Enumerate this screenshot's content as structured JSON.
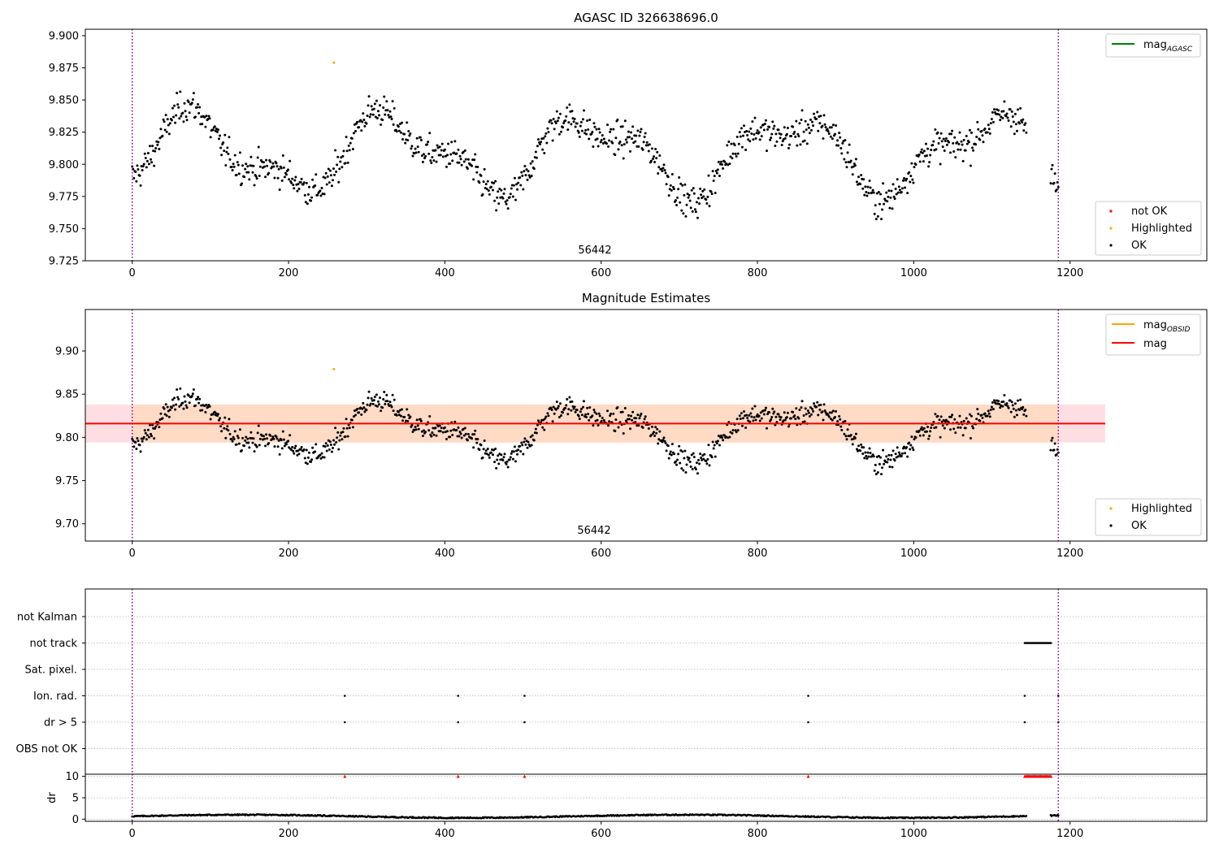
{
  "chart_data": [
    {
      "type": "scatter",
      "title": "AGASC ID 326638696.0",
      "xlim": [
        -60,
        1375
      ],
      "ylim": [
        9.725,
        9.905
      ],
      "x_ticks": [
        0,
        200,
        400,
        600,
        800,
        1000,
        1200
      ],
      "y_ticks": [
        "9.725",
        "9.750",
        "9.775",
        "9.800",
        "9.825",
        "9.850",
        "9.875",
        "9.900"
      ],
      "vlines": [
        0,
        1185
      ],
      "obsid_label": "56442",
      "obsid_x": 592,
      "line_legend": [
        {
          "name": "mag",
          "sub": "AGASC",
          "color": "#008000"
        }
      ],
      "scatter_legend": [
        {
          "name": "not OK",
          "color": "#ff0000"
        },
        {
          "name": "Highlighted",
          "color": "#ffa500"
        },
        {
          "name": "OK",
          "color": "#000000"
        }
      ],
      "series": [
        {
          "name": "OK",
          "color": "#000000",
          "generator": "magnitude",
          "x_start": 0,
          "x_end": 1185,
          "n": 1100,
          "skip_ranges": [
            [
              1145,
              1175
            ]
          ]
        },
        {
          "name": "Highlighted",
          "color": "#ffa500",
          "x": [
            258
          ],
          "y": [
            9.879
          ]
        }
      ]
    },
    {
      "type": "scatter",
      "title": "Magnitude Estimates",
      "xlim": [
        -60,
        1375
      ],
      "ylim": [
        9.68,
        9.948
      ],
      "x_ticks": [
        0,
        200,
        400,
        600,
        800,
        1000,
        1200
      ],
      "y_ticks": [
        "9.70",
        "9.75",
        "9.80",
        "9.85",
        "9.90"
      ],
      "vlines": [
        0,
        1185
      ],
      "obsid_label": "56442",
      "obsid_x": 592,
      "band": {
        "y0": 9.794,
        "y1": 9.838,
        "x0": -60,
        "x1": 1245,
        "color": "#ffb6c1",
        "inner_color": "#ffdab9",
        "inner_x0": 0,
        "inner_x1": 1185
      },
      "mag_line": {
        "y": 9.816,
        "color": "#ff0000",
        "x0": -60,
        "x1": 1245
      },
      "line_legend": [
        {
          "name": "mag",
          "sub": "OBSID",
          "color": "#ffa500"
        },
        {
          "name": "mag",
          "sub": "",
          "color": "#ff0000"
        }
      ],
      "scatter_legend": [
        {
          "name": "Highlighted",
          "color": "#ffa500"
        },
        {
          "name": "OK",
          "color": "#000000"
        }
      ],
      "series": [
        {
          "name": "OK",
          "color": "#000000",
          "generator": "magnitude",
          "x_start": 0,
          "x_end": 1185,
          "n": 1100,
          "skip_ranges": [
            [
              1145,
              1175
            ]
          ]
        },
        {
          "name": "Highlighted",
          "color": "#ffa500",
          "x": [
            258
          ],
          "y": [
            9.879
          ]
        }
      ]
    },
    {
      "type": "scatter",
      "title": "",
      "xlim": [
        -60,
        1375
      ],
      "categories": [
        "not Kalman",
        "not track",
        "Sat. pixel.",
        "Ion. rad.",
        "dr > 5",
        "OBS not OK"
      ],
      "flags": [
        {
          "category": "not track",
          "x_ranges": [
            [
              1142,
              1176
            ]
          ]
        },
        {
          "category": "Ion. rad.",
          "x": [
            272,
            417,
            502,
            865,
            1142,
            1185
          ]
        },
        {
          "category": "dr > 5",
          "x": [
            272,
            417,
            502,
            865,
            1142,
            1185
          ]
        }
      ],
      "vlines": [
        0,
        1185
      ]
    },
    {
      "type": "scatter",
      "title": "",
      "ylabel": "dr",
      "xlim": [
        -60,
        1375
      ],
      "ylim": [
        -0.5,
        10.5
      ],
      "x_ticks": [
        0,
        200,
        400,
        600,
        800,
        1000,
        1200
      ],
      "y_ticks": [
        "0",
        "5",
        "10"
      ],
      "vlines": [
        0,
        1185
      ],
      "series": [
        {
          "name": "dr",
          "color": "#000000",
          "generator": "dr",
          "x_start": 0,
          "x_end": 1185,
          "n": 1100,
          "skip_ranges": [
            [
              1145,
              1175
            ]
          ]
        },
        {
          "name": "dr clipped",
          "color": "#ff0000",
          "marker": "triangle",
          "x": [
            272,
            417,
            502,
            865
          ],
          "y": [
            10,
            10,
            10,
            10
          ],
          "x_range": [
            1142,
            1176
          ]
        }
      ]
    }
  ]
}
